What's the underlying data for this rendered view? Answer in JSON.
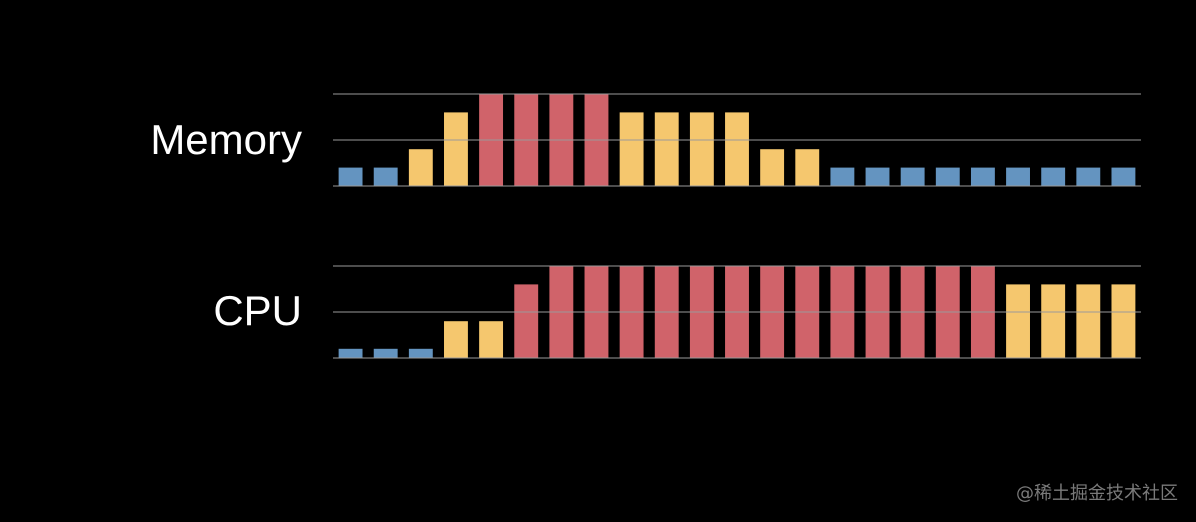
{
  "chart_data": [
    {
      "type": "bar",
      "title": "Memory",
      "values": [
        20,
        20,
        40,
        80,
        100,
        100,
        100,
        100,
        80,
        80,
        80,
        80,
        40,
        40,
        20,
        20,
        20,
        20,
        20,
        20,
        20,
        20,
        20
      ],
      "colors": [
        "#6494c0",
        "#6494c0",
        "#f5c76e",
        "#f5c76e",
        "#d0636a",
        "#d0636a",
        "#d0636a",
        "#d0636a",
        "#f5c76e",
        "#f5c76e",
        "#f5c76e",
        "#f5c76e",
        "#f5c76e",
        "#f5c76e",
        "#6494c0",
        "#6494c0",
        "#6494c0",
        "#6494c0",
        "#6494c0",
        "#6494c0",
        "#6494c0",
        "#6494c0",
        "#6494c0"
      ],
      "ylim": [
        0,
        100
      ],
      "yticks": [
        0,
        50,
        100
      ],
      "grid": true
    },
    {
      "type": "bar",
      "title": "CPU",
      "values": [
        10,
        10,
        10,
        40,
        40,
        80,
        100,
        100,
        100,
        100,
        100,
        100,
        100,
        100,
        100,
        100,
        100,
        100,
        100,
        80,
        80,
        80,
        80
      ],
      "colors": [
        "#6494c0",
        "#6494c0",
        "#6494c0",
        "#f5c76e",
        "#f5c76e",
        "#d0636a",
        "#d0636a",
        "#d0636a",
        "#d0636a",
        "#d0636a",
        "#d0636a",
        "#d0636a",
        "#d0636a",
        "#d0636a",
        "#d0636a",
        "#d0636a",
        "#d0636a",
        "#d0636a",
        "#d0636a",
        "#f5c76e",
        "#f5c76e",
        "#f5c76e",
        "#f5c76e"
      ],
      "ylim": [
        0,
        100
      ],
      "yticks": [
        0,
        50,
        100
      ],
      "grid": true
    }
  ],
  "watermark": "@稀土掘金技术社区"
}
